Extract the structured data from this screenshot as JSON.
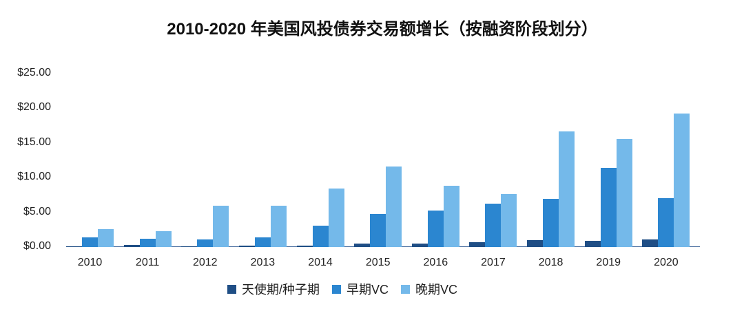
{
  "chart_data": {
    "type": "bar",
    "title": "2010-2020 年美国风投债券交易额增长（按融资阶段划分）",
    "xlabel": "",
    "ylabel": "",
    "ylim": [
      0,
      25
    ],
    "yticks": [
      "$0.00",
      "$5.00",
      "$10.00",
      "$15.00",
      "$20.00",
      "$25.00"
    ],
    "categories": [
      "2010",
      "2011",
      "2012",
      "2013",
      "2014",
      "2015",
      "2016",
      "2017",
      "2018",
      "2019",
      "2020"
    ],
    "series": [
      {
        "name": "天使期/种子期",
        "color": "#1f4e85",
        "values": [
          0.1,
          0.3,
          0.1,
          0.2,
          0.2,
          0.5,
          0.5,
          0.7,
          1.0,
          0.9,
          1.1
        ]
      },
      {
        "name": "早期VC",
        "color": "#2b86d0",
        "values": [
          1.4,
          1.2,
          1.1,
          1.4,
          3.1,
          4.8,
          5.3,
          6.3,
          6.9,
          11.4,
          7.0
        ]
      },
      {
        "name": "晚期VC",
        "color": "#74b9ea",
        "values": [
          2.6,
          2.3,
          6.0,
          6.0,
          8.4,
          11.6,
          8.8,
          7.6,
          16.7,
          15.6,
          19.2
        ]
      }
    ],
    "grid": false,
    "legend_position": "bottom"
  }
}
